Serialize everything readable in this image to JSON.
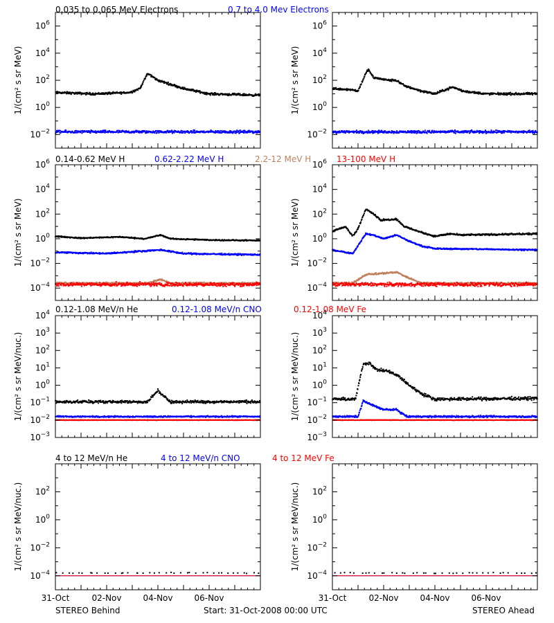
{
  "colors": {
    "black": "#000000",
    "blue": "#0000ff",
    "tan": "#c08060",
    "red": "#ff0000"
  },
  "footer": {
    "left": "STEREO Behind",
    "center": "Start: 31-Oct-2008 00:00 UTC",
    "right": "STEREO Ahead"
  },
  "chart_data": [
    {
      "type": "scatter",
      "row": 0,
      "column": "left",
      "ylabel": "1/(cm² s sr MeV)",
      "ylog": true,
      "ylim_exp": [
        -3,
        7
      ],
      "tick_exponents": [
        -2,
        0,
        2,
        4,
        6
      ],
      "x_ticks": [
        "31-Oct",
        "02-Nov",
        "04-Nov",
        "06-Nov"
      ],
      "xlim_days": [
        0,
        8
      ],
      "series": [
        {
          "name": "0.035 to 0.065 MeV Electrons",
          "color": "black",
          "profile": [
            [
              0,
              1.1
            ],
            [
              1.5,
              1.0
            ],
            [
              2.9,
              1.1
            ],
            [
              3.3,
              1.4
            ],
            [
              3.6,
              2.5
            ],
            [
              4.0,
              2.0
            ],
            [
              5.0,
              1.4
            ],
            [
              6.0,
              1.0
            ],
            [
              8,
              0.9
            ]
          ],
          "noise": 0.12
        },
        {
          "name": "0.7 to 4.0 MeV Electrons",
          "color": "blue",
          "profile": [
            [
              0,
              -1.8
            ],
            [
              8,
              -1.8
            ]
          ],
          "noise": 0.15
        }
      ]
    },
    {
      "type": "scatter",
      "row": 0,
      "column": "right",
      "ylabel": "1/(cm² s sr MeV)",
      "ylog": true,
      "ylim_exp": [
        -3,
        7
      ],
      "tick_exponents": [
        -2,
        0,
        2,
        4,
        6
      ],
      "x_ticks": [
        "31-Oct",
        "02-Nov",
        "04-Nov",
        "06-Nov"
      ],
      "xlim_days": [
        0,
        8
      ],
      "series": [
        {
          "name": "0.035 to 0.065 MeV Electrons",
          "color": "black",
          "profile": [
            [
              0,
              1.4
            ],
            [
              0.8,
              1.3
            ],
            [
              1.0,
              1.2
            ],
            [
              1.25,
              2.3
            ],
            [
              1.4,
              2.8
            ],
            [
              1.6,
              2.2
            ],
            [
              2.2,
              2.0
            ],
            [
              2.5,
              2.0
            ],
            [
              2.8,
              1.6
            ],
            [
              3.5,
              1.2
            ],
            [
              4.0,
              1.0
            ],
            [
              4.4,
              1.3
            ],
            [
              4.7,
              1.5
            ],
            [
              5.1,
              1.2
            ],
            [
              6,
              1.0
            ],
            [
              8,
              1.0
            ]
          ],
          "noise": 0.12
        },
        {
          "name": "0.7 to 4.0 MeV Electrons",
          "color": "blue",
          "profile": [
            [
              0,
              -1.8
            ],
            [
              8,
              -1.8
            ]
          ],
          "noise": 0.15
        }
      ]
    },
    {
      "type": "scatter",
      "row": 1,
      "column": "left",
      "ylabel": "1/(cm² s sr MeV)",
      "ylog": true,
      "ylim_exp": [
        -5,
        6
      ],
      "tick_exponents": [
        -4,
        -2,
        0,
        2,
        4,
        6
      ],
      "x_ticks": [
        "31-Oct",
        "02-Nov",
        "04-Nov",
        "06-Nov"
      ],
      "xlim_days": [
        0,
        8
      ],
      "series": [
        {
          "name": "0.14-0.62 MeV H",
          "color": "black",
          "profile": [
            [
              0,
              0.2
            ],
            [
              1.0,
              0.05
            ],
            [
              2.5,
              0.15
            ],
            [
              3.5,
              0.0
            ],
            [
              4.1,
              0.3
            ],
            [
              4.5,
              0.0
            ],
            [
              6,
              -0.1
            ],
            [
              8,
              -0.15
            ]
          ],
          "noise": 0.07
        },
        {
          "name": "0.62-2.22 MeV H",
          "color": "blue",
          "profile": [
            [
              0,
              -1.1
            ],
            [
              2,
              -1.2
            ],
            [
              4.1,
              -0.9
            ],
            [
              5,
              -1.2
            ],
            [
              8,
              -1.3
            ]
          ],
          "noise": 0.09
        },
        {
          "name": "2.2-12 MeV H",
          "color": "tan",
          "profile": [
            [
              0,
              -3.6
            ],
            [
              3.6,
              -3.6
            ],
            [
              4.1,
              -3.3
            ],
            [
              4.5,
              -3.6
            ],
            [
              8,
              -3.6
            ]
          ],
          "noise": 0.1
        },
        {
          "name": "13-100 MeV H",
          "color": "red",
          "profile": [
            [
              0,
              -3.7
            ],
            [
              8,
              -3.7
            ]
          ],
          "noise": 0.22
        }
      ]
    },
    {
      "type": "scatter",
      "row": 1,
      "column": "right",
      "ylabel": "1/(cm² s sr MeV)",
      "ylog": true,
      "ylim_exp": [
        -5,
        6
      ],
      "tick_exponents": [
        -4,
        -2,
        0,
        2,
        4,
        6
      ],
      "x_ticks": [
        "31-Oct",
        "02-Nov",
        "04-Nov",
        "06-Nov"
      ],
      "xlim_days": [
        0,
        8
      ],
      "series": [
        {
          "name": "0.14-0.62 MeV H",
          "color": "black",
          "profile": [
            [
              0,
              0.6
            ],
            [
              0.5,
              1.0
            ],
            [
              0.8,
              0.2
            ],
            [
              1.0,
              0.8
            ],
            [
              1.3,
              2.4
            ],
            [
              1.5,
              2.2
            ],
            [
              1.9,
              1.5
            ],
            [
              2.5,
              1.6
            ],
            [
              2.8,
              1.0
            ],
            [
              3.5,
              0.5
            ],
            [
              4.0,
              0.2
            ],
            [
              4.6,
              0.4
            ],
            [
              5.0,
              0.3
            ],
            [
              8,
              0.4
            ]
          ],
          "noise": 0.1
        },
        {
          "name": "0.62-2.22 MeV H",
          "color": "blue",
          "profile": [
            [
              0,
              -0.9
            ],
            [
              0.8,
              -1.2
            ],
            [
              1.3,
              0.4
            ],
            [
              1.6,
              0.3
            ],
            [
              2.0,
              0.0
            ],
            [
              2.5,
              0.3
            ],
            [
              3.0,
              -0.2
            ],
            [
              3.5,
              -0.6
            ],
            [
              4.0,
              -0.8
            ],
            [
              8,
              -0.9
            ]
          ],
          "noise": 0.08
        },
        {
          "name": "2.2-12 MeV H",
          "color": "tan",
          "profile": [
            [
              0,
              -3.6
            ],
            [
              0.8,
              -3.6
            ],
            [
              1.3,
              -2.9
            ],
            [
              2.0,
              -2.8
            ],
            [
              2.5,
              -2.7
            ],
            [
              3.0,
              -3.2
            ],
            [
              3.5,
              -3.6
            ],
            [
              8,
              -3.6
            ]
          ],
          "noise": 0.1
        },
        {
          "name": "13-100 MeV H",
          "color": "red",
          "profile": [
            [
              0,
              -3.7
            ],
            [
              8,
              -3.7
            ]
          ],
          "noise": 0.22
        }
      ]
    },
    {
      "type": "scatter",
      "row": 2,
      "column": "left",
      "ylabel": "1/(cm² s sr MeV/nuc.)",
      "ylog": true,
      "ylim_exp": [
        -3,
        4
      ],
      "tick_exponents": [
        -3,
        -2,
        -1,
        0,
        1,
        2,
        3,
        4
      ],
      "x_ticks": [
        "31-Oct",
        "02-Nov",
        "04-Nov",
        "06-Nov"
      ],
      "xlim_days": [
        0,
        8
      ],
      "series": [
        {
          "name": "0.12-1.08 MeV/n He",
          "color": "black",
          "profile": [
            [
              0,
              -0.95
            ],
            [
              3.6,
              -0.95
            ],
            [
              4.0,
              -0.3
            ],
            [
              4.2,
              -0.6
            ],
            [
              4.5,
              -0.95
            ],
            [
              8,
              -0.95
            ]
          ],
          "noise": 0.12
        },
        {
          "name": "0.12-1.08 MeV/n CNO",
          "color": "blue",
          "profile": [
            [
              0,
              -1.8
            ],
            [
              8,
              -1.8
            ]
          ],
          "noise": 0.06
        },
        {
          "name": "0.12-1.08 MeV Fe",
          "color": "red",
          "profile": [
            [
              0,
              -2.0
            ],
            [
              8,
              -2.0
            ]
          ],
          "noise": 0.02
        }
      ]
    },
    {
      "type": "scatter",
      "row": 2,
      "column": "right",
      "ylabel": "1/(cm² s sr MeV/nuc.)",
      "ylog": true,
      "ylim_exp": [
        -3,
        4
      ],
      "tick_exponents": [
        -3,
        -2,
        -1,
        0,
        1,
        2,
        3,
        4
      ],
      "x_ticks": [
        "31-Oct",
        "02-Nov",
        "04-Nov",
        "06-Nov"
      ],
      "xlim_days": [
        0,
        8
      ],
      "series": [
        {
          "name": "0.12-1.08 MeV/n He",
          "color": "black",
          "profile": [
            [
              0,
              -0.8
            ],
            [
              0.9,
              -0.8
            ],
            [
              1.2,
              1.2
            ],
            [
              1.45,
              1.3
            ],
            [
              1.7,
              0.9
            ],
            [
              2.2,
              0.8
            ],
            [
              2.6,
              0.5
            ],
            [
              3.0,
              0.0
            ],
            [
              3.5,
              -0.5
            ],
            [
              4.0,
              -0.8
            ],
            [
              8,
              -0.75
            ]
          ],
          "noise": 0.13
        },
        {
          "name": "0.12-1.08 MeV/n CNO",
          "color": "blue",
          "profile": [
            [
              0,
              -1.8
            ],
            [
              1.0,
              -1.8
            ],
            [
              1.2,
              -0.9
            ],
            [
              1.5,
              -1.1
            ],
            [
              2.0,
              -1.4
            ],
            [
              2.5,
              -1.4
            ],
            [
              2.9,
              -1.8
            ],
            [
              8,
              -1.8
            ]
          ],
          "noise": 0.08
        },
        {
          "name": "0.12-1.08 MeV Fe",
          "color": "red",
          "profile": [
            [
              0,
              -2.0
            ],
            [
              8,
              -2.0
            ]
          ],
          "noise": 0.02
        }
      ]
    },
    {
      "type": "scatter",
      "row": 3,
      "column": "left",
      "ylabel": "1/(cm² s sr MeV/nuc.)",
      "ylog": true,
      "ylim_exp": [
        -5,
        4
      ],
      "tick_exponents": [
        -4,
        -2,
        0,
        2
      ],
      "x_ticks": [
        "31-Oct",
        "02-Nov",
        "04-Nov",
        "06-Nov"
      ],
      "xlim_days": [
        0,
        8
      ],
      "series": [
        {
          "name": "4 to 12 MeV/n He",
          "color": "black",
          "profile": [
            [
              0,
              -3.8
            ],
            [
              8,
              -3.8
            ]
          ],
          "noise": 0.05,
          "sparse": true
        },
        {
          "name": "4 to 12 MeV/n CNO",
          "color": "blue",
          "profile": [
            [
              0,
              -4.0
            ],
            [
              8,
              -4.0
            ]
          ],
          "noise": 0.0
        },
        {
          "name": "4 to 12 MeV Fe",
          "color": "red",
          "profile": [
            [
              0,
              -4.0
            ],
            [
              8,
              -4.0
            ]
          ],
          "noise": 0.0
        }
      ]
    },
    {
      "type": "scatter",
      "row": 3,
      "column": "right",
      "ylabel": "1/(cm² s sr MeV/nuc.)",
      "ylog": true,
      "ylim_exp": [
        -5,
        4
      ],
      "tick_exponents": [
        -4,
        -2,
        0,
        2
      ],
      "x_ticks": [
        "31-Oct",
        "02-Nov",
        "04-Nov",
        "06-Nov"
      ],
      "xlim_days": [
        0,
        8
      ],
      "series": [
        {
          "name": "4 to 12 MeV/n He",
          "color": "black",
          "profile": [
            [
              0,
              -3.8
            ],
            [
              8,
              -3.8
            ]
          ],
          "noise": 0.05,
          "sparse": true
        },
        {
          "name": "4 to 12 MeV/n CNO",
          "color": "blue",
          "profile": [
            [
              0,
              -4.0
            ],
            [
              8,
              -4.0
            ]
          ],
          "noise": 0.0
        },
        {
          "name": "4 to 12 MeV Fe",
          "color": "red",
          "profile": [
            [
              0,
              -4.0
            ],
            [
              8,
              -4.0
            ]
          ],
          "noise": 0.0
        }
      ]
    }
  ],
  "legends": [
    {
      "row": 0,
      "labels": [
        {
          "text": "0.035 to 0.065 MeV Electrons",
          "color": "black"
        },
        {
          "text": "0.7 to 4.0 Mev Electrons",
          "color": "blue"
        }
      ]
    },
    {
      "row": 1,
      "labels": [
        {
          "text": "0.14-0.62 MeV H",
          "color": "black"
        },
        {
          "text": "0.62-2.22 MeV H",
          "color": "blue"
        },
        {
          "text": "2.2-12 MeV H",
          "color": "tan"
        },
        {
          "text": "13-100 MeV H",
          "color": "red"
        }
      ]
    },
    {
      "row": 2,
      "labels": [
        {
          "text": "0.12-1.08 MeV/n He",
          "color": "black"
        },
        {
          "text": "0.12-1.08 MeV/n CNO",
          "color": "blue"
        },
        {
          "text": "0.12-1.08 MeV Fe",
          "color": "red"
        }
      ]
    },
    {
      "row": 3,
      "labels": [
        {
          "text": "4 to 12 MeV/n He",
          "color": "black"
        },
        {
          "text": "4 to 12 MeV/n CNO",
          "color": "blue"
        },
        {
          "text": "4 to 12 MeV Fe",
          "color": "red"
        }
      ]
    }
  ]
}
